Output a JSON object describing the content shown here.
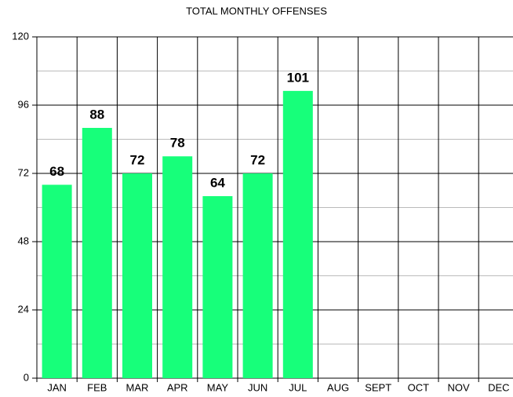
{
  "chart_data": {
    "type": "bar",
    "title": "TOTAL MONTHLY OFFENSES",
    "categories": [
      "JAN",
      "FEB",
      "MAR",
      "APR",
      "MAY",
      "JUN",
      "JUL",
      "AUG",
      "SEPT",
      "OCT",
      "NOV",
      "DEC"
    ],
    "values": [
      68,
      88,
      72,
      78,
      64,
      72,
      101,
      null,
      null,
      null,
      null,
      null
    ],
    "color": "#17ff7a",
    "ylim": [
      0,
      120
    ],
    "yticks": [
      0,
      24,
      48,
      72,
      96,
      120
    ],
    "minor_yticks": [
      12,
      36,
      60,
      84,
      108
    ],
    "grid": true
  }
}
